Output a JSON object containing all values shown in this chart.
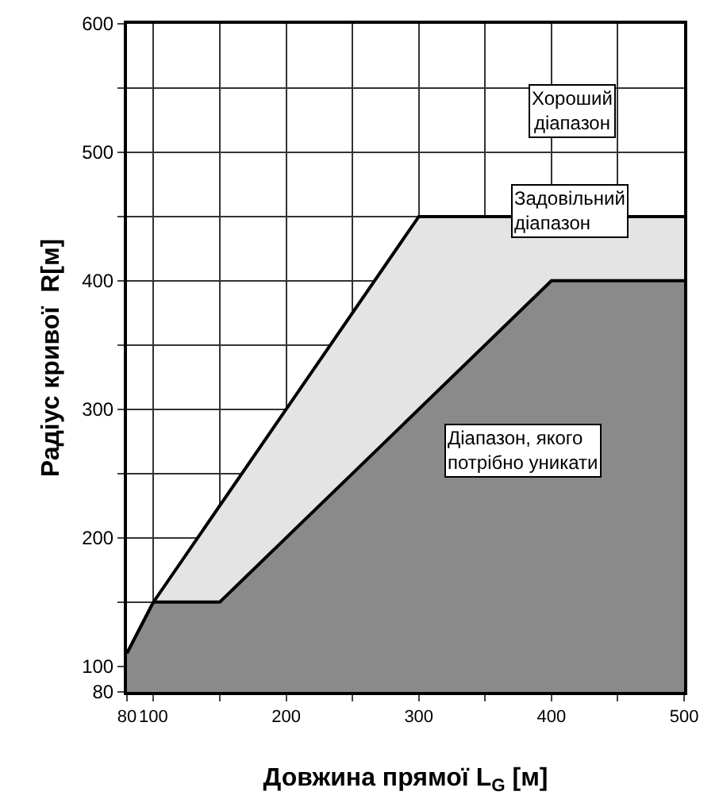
{
  "chart_data": {
    "type": "area",
    "xlabel": "Довжина прямої L$_{G}$ [м]",
    "ylabel": "Радіус кривої  R[м]",
    "series": [
      {
        "type": "area",
        "color": "#8a8a8a",
        "x": [
          80,
          100,
          150,
          400,
          500
        ],
        "values": [
          110,
          150,
          150,
          400,
          400
        ]
      },
      {
        "type": "area",
        "color": "#e4e4e4",
        "x": [
          80,
          100,
          300,
          500
        ],
        "values": [
          110,
          150,
          450,
          450
        ]
      }
    ],
    "xlim": [
      80,
      500
    ],
    "ylim": [
      80,
      600
    ],
    "xticks": [
      80,
      100,
      {
        "value": 150,
        "label": null
      },
      200,
      {
        "value": 250,
        "label": null
      },
      300,
      {
        "value": 350,
        "label": null
      },
      400,
      {
        "value": 450,
        "label": null
      },
      500
    ],
    "yticks": [
      80,
      100,
      {
        "value": 150,
        "label": null
      },
      200,
      {
        "value": 250,
        "label": null
      },
      300,
      {
        "value": 350,
        "label": null
      },
      400,
      {
        "value": 450,
        "label": null
      },
      500,
      {
        "value": 550,
        "label": null
      },
      600
    ],
    "grid": true,
    "line_style": "solid",
    "annotations": [
      "Хороший\nдіапазон",
      "Задовільний\nдіапазон",
      "Діапазон, якого\nпотрібно уникати"
    ]
  }
}
